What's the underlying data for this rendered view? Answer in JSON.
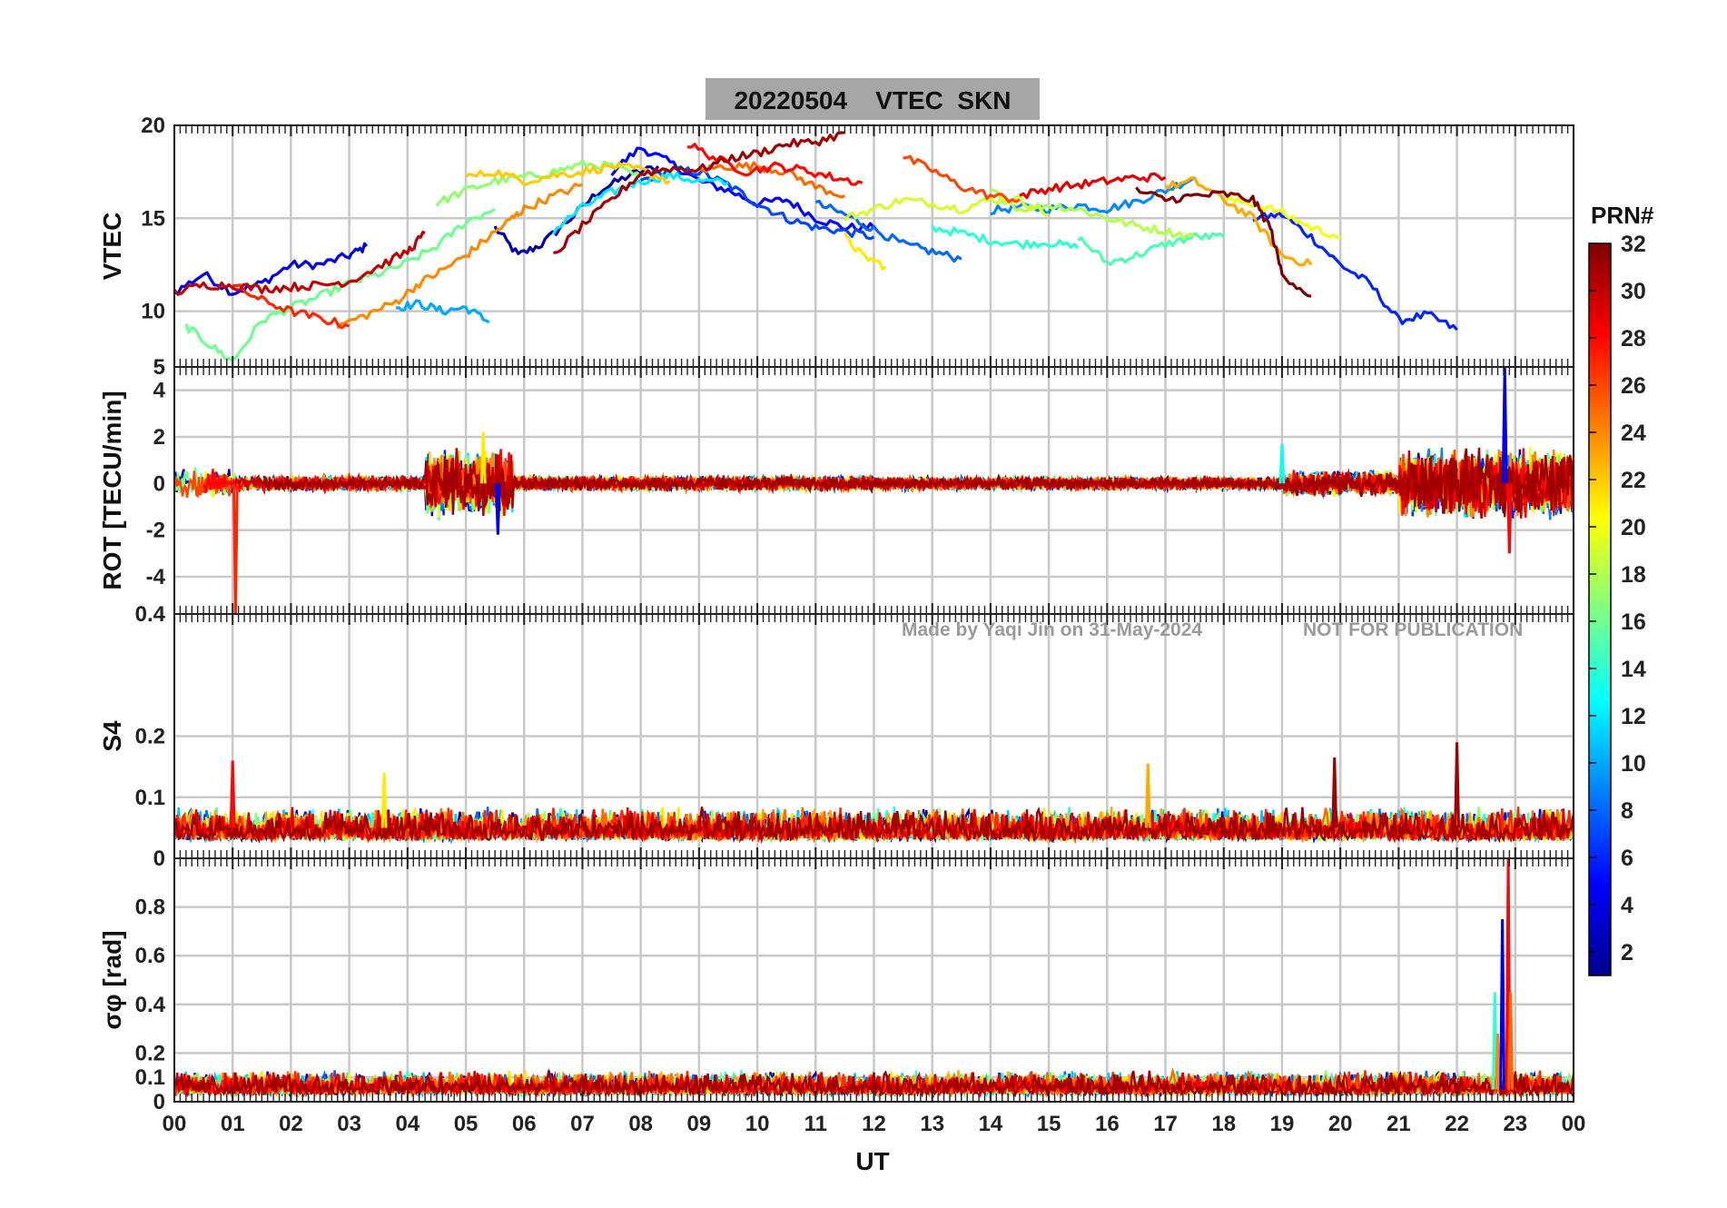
{
  "chart_data": {
    "type": "line",
    "title": "20220504    VTEC  SKN",
    "xlabel": "UT",
    "x_ticks": [
      "00",
      "01",
      "02",
      "03",
      "04",
      "05",
      "06",
      "07",
      "08",
      "09",
      "10",
      "11",
      "12",
      "13",
      "14",
      "15",
      "16",
      "17",
      "18",
      "19",
      "20",
      "21",
      "22",
      "23",
      "00"
    ],
    "xlim": [
      0,
      24
    ],
    "watermark_left": "Made by Yaqi Jin on 31-May-2024",
    "watermark_right": "NOT FOR PUBLICATION",
    "colorbar": {
      "label": "PRN#",
      "range": [
        1,
        32
      ],
      "ticks": [
        "2",
        "4",
        "6",
        "8",
        "10",
        "12",
        "14",
        "16",
        "18",
        "20",
        "22",
        "24",
        "26",
        "28",
        "30",
        "32"
      ],
      "colors": [
        "#00008f",
        "#0000ff",
        "#0080ff",
        "#00ffff",
        "#80ff80",
        "#ffff00",
        "#ff8000",
        "#ff0000",
        "#800000"
      ]
    },
    "panels": [
      {
        "id": "vtec",
        "ylabel": "VTEC",
        "ylim": [
          7,
          20
        ],
        "y_ticks": [
          "10",
          "15",
          "20"
        ],
        "series": [
          {
            "name": "PRN 2",
            "prn": 2,
            "x": [
              5.5,
              5.9,
              6.3,
              6.8,
              7.3,
              7.8,
              8.3
            ],
            "y": [
              14.5,
              13.0,
              13.6,
              15.0,
              16.5,
              17.3,
              17.8
            ]
          },
          {
            "name": "PRN 4",
            "prn": 4,
            "x": [
              0,
              0.5,
              1,
              1.5,
              2,
              2.5,
              3,
              3.3
            ],
            "y": [
              11,
              12,
              11,
              11.5,
              12.5,
              12.5,
              13,
              13.5
            ]
          },
          {
            "name": "PRN 5",
            "prn": 5,
            "x": [
              7.5,
              8,
              8.5,
              9,
              9.5,
              10,
              10.5,
              11,
              11.5,
              12
            ],
            "y": [
              17.5,
              18.8,
              18,
              17,
              16.5,
              15.8,
              16,
              15,
              14.5,
              14.5
            ]
          },
          {
            "name": "PRN 6",
            "prn": 6,
            "x": [
              18.5,
              19,
              19.5,
              20,
              20.5,
              21,
              21.5,
              22
            ],
            "y": [
              15,
              15.2,
              14,
              12.5,
              11.5,
              9.5,
              9.8,
              9.0
            ]
          },
          {
            "name": "PRN 7",
            "prn": 7,
            "x": [
              8,
              8.5,
              9,
              9.5,
              10,
              10.5,
              11,
              11.5,
              12
            ],
            "y": [
              17.0,
              17.6,
              17.5,
              16.8,
              15.8,
              15.0,
              14.5,
              14.3,
              14.0
            ]
          },
          {
            "name": "PRN 8",
            "prn": 8,
            "x": [
              11,
              11.5,
              12,
              12.5,
              13,
              13.5
            ],
            "y": [
              15.8,
              15.2,
              14.4,
              13.6,
              13.2,
              12.8
            ]
          },
          {
            "name": "PRN 9",
            "prn": 9,
            "x": [
              14,
              14.5,
              15,
              15.5,
              16,
              16.5,
              17,
              17.5
            ],
            "y": [
              15.4,
              15.6,
              15.5,
              15.7,
              15.5,
              15.9,
              16.5,
              17.2
            ]
          },
          {
            "name": "PRN 10",
            "prn": 10,
            "x": [
              3.8,
              4.2,
              4.6,
              5,
              5.4
            ],
            "y": [
              10.2,
              10.4,
              10.0,
              10.2,
              9.4
            ]
          },
          {
            "name": "PRN 12",
            "prn": 12,
            "x": [
              6.5,
              7,
              7.5,
              8,
              8.5,
              9,
              9.5
            ],
            "y": [
              14.3,
              15.6,
              16.4,
              17,
              17.3,
              17.0,
              16.9
            ]
          },
          {
            "name": "PRN 14",
            "prn": 14,
            "x": [
              13,
              13.5,
              14,
              14.5,
              15,
              15.5
            ],
            "y": [
              14.5,
              14.2,
              13.8,
              13.6,
              13.7,
              13.4
            ]
          },
          {
            "name": "PRN 15",
            "prn": 15,
            "x": [
              15.5,
              16,
              16.5,
              17,
              17.5,
              18
            ],
            "y": [
              14.0,
              12.6,
              13.0,
              13.6,
              14.0,
              14.0
            ]
          },
          {
            "name": "PRN 16",
            "prn": 16,
            "x": [
              0.2,
              0.6,
              1,
              1.5,
              2,
              2.5,
              3,
              3.5,
              4,
              4.5,
              5,
              5.5
            ],
            "y": [
              9.2,
              8.2,
              7.3,
              9.5,
              10.2,
              10.8,
              11.5,
              12.0,
              12.6,
              13.5,
              14.8,
              15.5
            ]
          },
          {
            "name": "PRN 17",
            "prn": 17,
            "x": [
              4.5,
              5,
              5.5,
              6,
              6.5,
              7,
              7.5,
              8
            ],
            "y": [
              15.8,
              16.5,
              17.0,
              17.2,
              17.5,
              17.9,
              17.8,
              17.2
            ]
          },
          {
            "name": "PRN 18",
            "prn": 18,
            "x": [
              14,
              14.5,
              15,
              15.5,
              16,
              16.5,
              17,
              17.5
            ],
            "y": [
              16.5,
              15.5,
              15.7,
              15.5,
              15.0,
              14.6,
              14.3,
              14.0
            ]
          },
          {
            "name": "PRN 19",
            "prn": 19,
            "x": [
              11.5,
              12,
              12.5,
              13,
              13.5,
              14,
              14.5,
              15
            ],
            "y": [
              15.0,
              15.5,
              16.0,
              15.8,
              15.5,
              16.0,
              16.0,
              15.2
            ]
          },
          {
            "name": "PRN 20",
            "prn": 20,
            "x": [
              18,
              18.5,
              19,
              19.5,
              20
            ],
            "y": [
              16.0,
              15.8,
              15.3,
              14.5,
              14.0
            ]
          },
          {
            "name": "PRN 21",
            "prn": 21,
            "x": [
              11.5,
              11.8,
              12.2
            ],
            "y": [
              14.0,
              13.0,
              12.4
            ]
          },
          {
            "name": "PRN 22",
            "prn": 22,
            "x": [
              5,
              5.5,
              6,
              6.5,
              7,
              7.5,
              8,
              8.5
            ],
            "y": [
              17.2,
              17.5,
              17.0,
              17.3,
              17.5,
              17.8,
              17.6,
              17.0
            ]
          },
          {
            "name": "PRN 23",
            "prn": 23,
            "x": [
              17,
              17.5,
              18,
              18.5,
              19,
              19.5
            ],
            "y": [
              16.7,
              17.0,
              16.0,
              15.0,
              13.0,
              12.5
            ]
          },
          {
            "name": "PRN 24",
            "prn": 24,
            "x": [
              2.8,
              3.3,
              3.8,
              4.2,
              4.6,
              5,
              5.4,
              5.8,
              6,
              6.5,
              7
            ],
            "y": [
              9.2,
              9.8,
              10.5,
              11.5,
              12.2,
              13.0,
              14.0,
              15.0,
              15.5,
              16.2,
              16.8
            ]
          },
          {
            "name": "PRN 25",
            "prn": 25,
            "x": [
              9,
              9.5,
              10,
              10.5,
              11,
              11.5
            ],
            "y": [
              17.6,
              17.8,
              17.8,
              17.5,
              16.7,
              16.2
            ]
          },
          {
            "name": "PRN 26",
            "prn": 26,
            "x": [
              12.5,
              13,
              13.5,
              14,
              14.5
            ],
            "y": [
              18.3,
              17.6,
              16.7,
              16.2,
              16.0
            ]
          },
          {
            "name": "PRN 27",
            "prn": 27,
            "x": [
              1,
              1.5,
              2,
              2.5,
              3
            ],
            "y": [
              11.4,
              10.6,
              10.0,
              9.6,
              9.2
            ]
          },
          {
            "name": "PRN 28",
            "prn": 28,
            "x": [
              8.8,
              9.3,
              9.8,
              10.3,
              10.8,
              11.3,
              11.8
            ],
            "y": [
              19.0,
              18.2,
              17.5,
              17.8,
              17.6,
              17.2,
              16.9
            ]
          },
          {
            "name": "PRN 29",
            "prn": 29,
            "x": [
              14.5,
              15,
              15.5,
              16,
              16.5,
              17
            ],
            "y": [
              16.2,
              16.6,
              16.8,
              17.0,
              17.2,
              17.2
            ]
          },
          {
            "name": "PRN 30",
            "prn": 30,
            "x": [
              0,
              0.5,
              1,
              1.5,
              2,
              2.5,
              3,
              3.5,
              4,
              4.3
            ],
            "y": [
              11.0,
              11.4,
              11.4,
              11.2,
              11.3,
              11.4,
              11.6,
              12.4,
              13.2,
              14.2
            ]
          },
          {
            "name": "PRN 31",
            "prn": 31,
            "x": [
              6.5,
              7,
              7.5,
              8,
              8.5,
              9,
              9.5,
              10,
              10.5,
              11,
              11.5
            ],
            "y": [
              13.0,
              14.6,
              16.0,
              17.4,
              17.7,
              17.6,
              18.2,
              18.5,
              19.0,
              19.1,
              19.6
            ]
          },
          {
            "name": "PRN 32",
            "prn": 32,
            "x": [
              16.5,
              17,
              17.5,
              18,
              18.5,
              18.8,
              19,
              19.5
            ],
            "y": [
              16.5,
              16.0,
              16.2,
              16.3,
              16.0,
              14.5,
              12.0,
              10.8
            ]
          }
        ]
      },
      {
        "id": "rot",
        "ylabel": "ROT [TECU/min]",
        "ylim": [
          -5.6,
          5
        ],
        "y_ticks": [
          "-4",
          "-2",
          "0",
          "2",
          "4"
        ],
        "top_tick": "5",
        "bursts": [
          {
            "x0": 0.0,
            "x1": 1.0,
            "amp": 0.7
          },
          {
            "x0": 1.0,
            "x1": 4.3,
            "amp": 0.35
          },
          {
            "x0": 4.3,
            "x1": 5.8,
            "amp": 1.6
          },
          {
            "x0": 5.8,
            "x1": 12.0,
            "amp": 0.35
          },
          {
            "x0": 12.0,
            "x1": 19.0,
            "amp": 0.3
          },
          {
            "x0": 19.0,
            "x1": 21.0,
            "amp": 0.6
          },
          {
            "x0": 21.0,
            "x1": 24.0,
            "amp": 1.6
          }
        ],
        "spikes": [
          {
            "x": 1.05,
            "y": -5.6,
            "prn": 27
          },
          {
            "x": 22.82,
            "y": 5.0,
            "prn": 4
          },
          {
            "x": 22.9,
            "y": -3.0,
            "prn": 28
          },
          {
            "x": 5.3,
            "y": 2.2,
            "prn": 21
          },
          {
            "x": 5.55,
            "y": -2.2,
            "prn": 4
          },
          {
            "x": 19.0,
            "y": 1.7,
            "prn": 13
          }
        ]
      },
      {
        "id": "s4",
        "ylabel": "S4",
        "ylim": [
          0,
          0.4
        ],
        "y_ticks": [
          "0",
          "0.1",
          "0.2"
        ],
        "top_tick": "0.4",
        "baseline": {
          "low": 0.03,
          "high": 0.085
        },
        "spikes": [
          {
            "x": 1.0,
            "y": 0.16,
            "prn": 28
          },
          {
            "x": 3.6,
            "y": 0.14,
            "prn": 21
          },
          {
            "x": 16.7,
            "y": 0.155,
            "prn": 23
          },
          {
            "x": 19.9,
            "y": 0.165,
            "prn": 31
          },
          {
            "x": 22.0,
            "y": 0.19,
            "prn": 31
          }
        ]
      },
      {
        "id": "sigphi",
        "ylabel": "σφ [rad]",
        "ylim": [
          0,
          1
        ],
        "y_ticks": [
          "0",
          "0.1",
          "0.2",
          "0.4",
          "0.6",
          "0.8"
        ],
        "baseline": {
          "low": 0.03,
          "high": 0.13
        },
        "spikes": [
          {
            "x": 22.65,
            "y": 0.45,
            "prn": 14
          },
          {
            "x": 22.7,
            "y": 0.28,
            "prn": 24
          },
          {
            "x": 22.78,
            "y": 0.75,
            "prn": 4
          },
          {
            "x": 22.88,
            "y": 1.0,
            "prn": 28
          },
          {
            "x": 22.92,
            "y": 0.45,
            "prn": 25
          }
        ]
      }
    ]
  }
}
